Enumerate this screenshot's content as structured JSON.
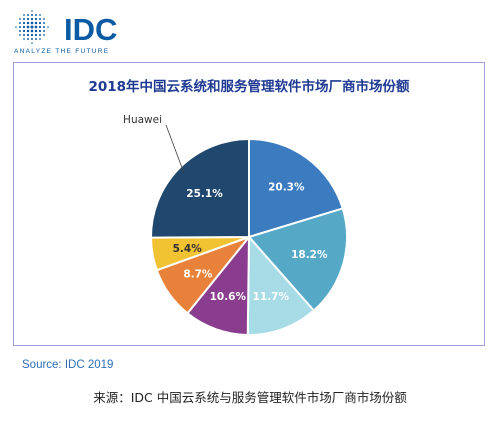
{
  "logo": {
    "brand": "IDC",
    "tagline": "ANALYZE THE FUTURE",
    "color": "#0a5aa4"
  },
  "source_note": "Source: IDC 2019",
  "caption": "来源：IDC 中国云系统与服务管理软件市场厂商市场份额",
  "chart_data": {
    "type": "pie",
    "title": "2018年中国云系统和服务管理软件市场厂商市场份额",
    "unit": "%",
    "slices": [
      {
        "label": "",
        "value": 20.3,
        "display": "20.3%",
        "color": "#3b7bbf",
        "label_color": "#ffffff"
      },
      {
        "label": "",
        "value": 18.2,
        "display": "18.2%",
        "color": "#55a9c7",
        "label_color": "#ffffff"
      },
      {
        "label": "",
        "value": 11.7,
        "display": "11.7%",
        "color": "#a7dbe6",
        "label_color": "#ffffff"
      },
      {
        "label": "",
        "value": 10.6,
        "display": "10.6%",
        "color": "#8a3d8f",
        "label_color": "#ffffff"
      },
      {
        "label": "",
        "value": 8.7,
        "display": "8.7%",
        "color": "#e8823a",
        "label_color": "#ffffff"
      },
      {
        "label": "",
        "value": 5.4,
        "display": "5.4%",
        "color": "#f1c232",
        "label_color": "#333333"
      },
      {
        "label": "Huawei",
        "value": 25.1,
        "display": "25.1%",
        "color": "#20486e",
        "label_color": "#ffffff"
      }
    ]
  }
}
